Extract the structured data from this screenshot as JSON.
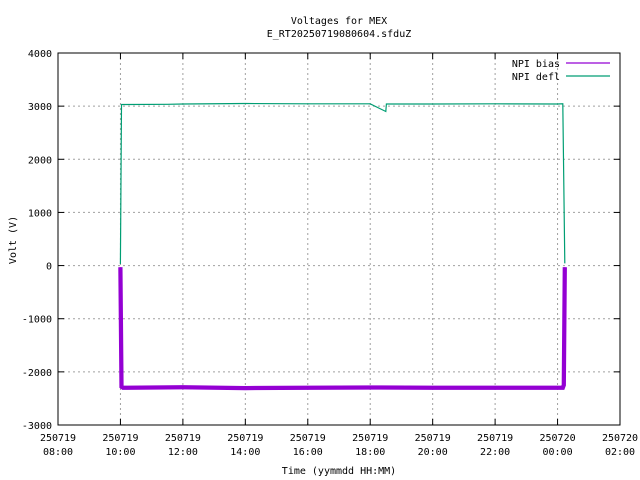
{
  "chart_data": {
    "type": "line",
    "title": "Voltages for MEX",
    "subtitle": "E_RT20250719080604.sfduZ",
    "xlabel": "Time (yymmdd HH:MM)",
    "ylabel": "Volt (V)",
    "x_range": [
      "2025-07-19 08:00",
      "2025-07-20 02:00"
    ],
    "ylim": [
      -3000,
      4000
    ],
    "yticks": [
      -3000,
      -2000,
      -1000,
      0,
      1000,
      2000,
      3000,
      4000
    ],
    "ytick_labels": [
      "-3000",
      "-2000",
      "-1000",
      "0",
      "1000",
      "2000",
      "3000",
      "4000"
    ],
    "xticks": [
      {
        "t": "2025-07-19 08:00",
        "date": "250719",
        "time": "08:00"
      },
      {
        "t": "2025-07-19 10:00",
        "date": "250719",
        "time": "10:00"
      },
      {
        "t": "2025-07-19 12:00",
        "date": "250719",
        "time": "12:00"
      },
      {
        "t": "2025-07-19 14:00",
        "date": "250719",
        "time": "14:00"
      },
      {
        "t": "2025-07-19 16:00",
        "date": "250719",
        "time": "16:00"
      },
      {
        "t": "2025-07-19 18:00",
        "date": "250719",
        "time": "18:00"
      },
      {
        "t": "2025-07-19 20:00",
        "date": "250719",
        "time": "20:00"
      },
      {
        "t": "2025-07-19 22:00",
        "date": "250719",
        "time": "22:00"
      },
      {
        "t": "2025-07-20 00:00",
        "date": "250720",
        "time": "00:00"
      },
      {
        "t": "2025-07-20 02:00",
        "date": "250720",
        "time": "02:00"
      }
    ],
    "grid": true,
    "legend_position": "top-right",
    "series": [
      {
        "name": "NPI bias",
        "color": "#9400d3",
        "band_width_volts": 80,
        "points": [
          [
            "2025-07-19 10:00",
            -30
          ],
          [
            "2025-07-19 10:02",
            -2280
          ],
          [
            "2025-07-19 10:05",
            -2300
          ],
          [
            "2025-07-19 12:00",
            -2290
          ],
          [
            "2025-07-19 14:00",
            -2305
          ],
          [
            "2025-07-19 16:00",
            -2300
          ],
          [
            "2025-07-19 18:00",
            -2295
          ],
          [
            "2025-07-19 20:00",
            -2300
          ],
          [
            "2025-07-19 22:00",
            -2300
          ],
          [
            "2025-07-20 00:00",
            -2300
          ],
          [
            "2025-07-20 00:10",
            -2300
          ],
          [
            "2025-07-20 00:12",
            -2250
          ],
          [
            "2025-07-20 00:14",
            -30
          ]
        ]
      },
      {
        "name": "NPI defl",
        "color": "#009e73",
        "band_width_volts": 0,
        "points": [
          [
            "2025-07-19 10:00",
            30
          ],
          [
            "2025-07-19 10:02",
            3030
          ],
          [
            "2025-07-19 11:30",
            3035
          ],
          [
            "2025-07-19 12:00",
            3040
          ],
          [
            "2025-07-19 14:00",
            3050
          ],
          [
            "2025-07-19 16:00",
            3045
          ],
          [
            "2025-07-19 18:00",
            3045
          ],
          [
            "2025-07-19 18:30",
            2900
          ],
          [
            "2025-07-19 18:31",
            3040
          ],
          [
            "2025-07-19 20:00",
            3040
          ],
          [
            "2025-07-19 22:00",
            3045
          ],
          [
            "2025-07-20 00:00",
            3040
          ],
          [
            "2025-07-20 00:10",
            3045
          ],
          [
            "2025-07-20 00:14",
            40
          ]
        ]
      }
    ]
  }
}
